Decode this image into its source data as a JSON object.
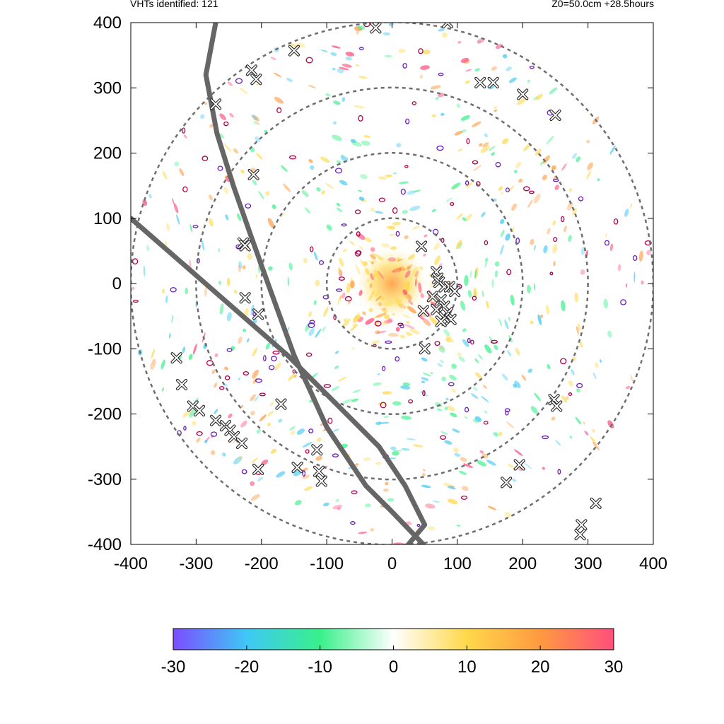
{
  "header": {
    "vht_count_label": "VHTs identified: 121",
    "run_info_label": "Z0=50.0cm  +28.5hours"
  },
  "chart_data": {
    "type": "heatmap",
    "title": "",
    "xlabel": "",
    "ylabel": "",
    "xlim": [
      -400,
      400
    ],
    "ylim": [
      -400,
      400
    ],
    "xticks": [
      -400,
      -300,
      -200,
      -100,
      0,
      100,
      200,
      300,
      400
    ],
    "yticks": [
      -400,
      -300,
      -200,
      -100,
      0,
      100,
      200,
      300,
      400
    ],
    "grid": false,
    "colorbar": {
      "range": [
        -30,
        30
      ],
      "ticks": [
        -30,
        -20,
        -10,
        0,
        10,
        20,
        30
      ],
      "colors": [
        "#7b4dff",
        "#3ec8f5",
        "#39f08a",
        "#ffffff",
        "#ffd84a",
        "#ff9a40",
        "#ff4f7d"
      ]
    },
    "range_rings": [
      100,
      200,
      300,
      400
    ],
    "tracks": [
      {
        "points": [
          [
            -270,
            400
          ],
          [
            -285,
            320
          ],
          [
            -268,
            230
          ],
          [
            -243,
            150
          ],
          [
            -215,
            70
          ],
          [
            -190,
            0
          ],
          [
            -150,
            -110
          ],
          [
            -100,
            -220
          ],
          [
            -40,
            -310
          ],
          [
            0,
            -350
          ],
          [
            48,
            -400
          ]
        ]
      },
      {
        "points": [
          [
            -400,
            100
          ],
          [
            -320,
            30
          ],
          [
            -240,
            -40
          ],
          [
            -160,
            -110
          ],
          [
            -80,
            -190
          ],
          [
            -20,
            -250
          ],
          [
            20,
            -310
          ],
          [
            50,
            -370
          ],
          [
            25,
            -400
          ]
        ]
      }
    ],
    "vht_markers": [
      [
        -150,
        357
      ],
      [
        -215,
        327
      ],
      [
        -208,
        313
      ],
      [
        -270,
        275
      ],
      [
        -25,
        392
      ],
      [
        85,
        400
      ],
      [
        135,
        308
      ],
      [
        155,
        308
      ],
      [
        200,
        290
      ],
      [
        250,
        258
      ],
      [
        -212,
        167
      ],
      [
        -228,
        62
      ],
      [
        -225,
        58
      ],
      [
        45,
        57
      ],
      [
        68,
        18
      ],
      [
        70,
        8
      ],
      [
        72,
        2
      ],
      [
        80,
        -5
      ],
      [
        88,
        -5
      ],
      [
        96,
        -12
      ],
      [
        62,
        -20
      ],
      [
        75,
        -25
      ],
      [
        80,
        -35
      ],
      [
        68,
        -40
      ],
      [
        85,
        -45
      ],
      [
        48,
        -42
      ],
      [
        90,
        -55
      ],
      [
        80,
        -52
      ],
      [
        75,
        -58
      ],
      [
        50,
        -100
      ],
      [
        -225,
        -22
      ],
      [
        -205,
        -47
      ],
      [
        -330,
        -114
      ],
      [
        -322,
        -155
      ],
      [
        -305,
        -188
      ],
      [
        -295,
        -195
      ],
      [
        -270,
        -210
      ],
      [
        -255,
        -218
      ],
      [
        -248,
        -225
      ],
      [
        -242,
        -235
      ],
      [
        -230,
        -245
      ],
      [
        -205,
        -285
      ],
      [
        -170,
        -185
      ],
      [
        -145,
        -282
      ],
      [
        -112,
        -288
      ],
      [
        -108,
        -303
      ],
      [
        -115,
        -255
      ],
      [
        248,
        -178
      ],
      [
        252,
        -188
      ],
      [
        195,
        -278
      ],
      [
        175,
        -305
      ],
      [
        312,
        -337
      ],
      [
        290,
        -370
      ],
      [
        288,
        -385
      ]
    ]
  }
}
